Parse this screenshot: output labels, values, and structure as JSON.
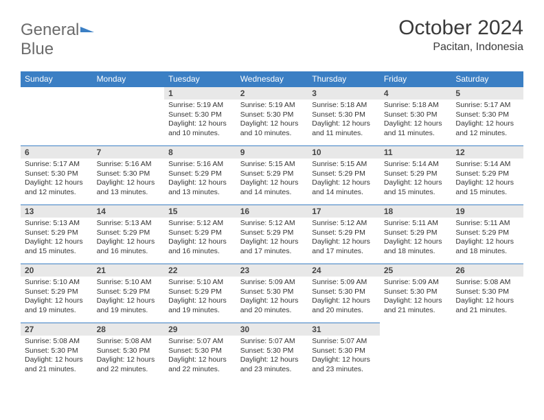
{
  "logo": {
    "part1": "General",
    "part2": "Blue"
  },
  "title": "October 2024",
  "location": "Pacitan, Indonesia",
  "colors": {
    "header_bg": "#3b7fc4",
    "header_text": "#ffffff",
    "daynum_bg": "#e8e8e8",
    "border": "#3b7fc4",
    "logo_gray": "#6b6b6b",
    "logo_blue": "#3b7fc4",
    "background": "#ffffff"
  },
  "typography": {
    "month_title_size": 30,
    "location_size": 16,
    "weekday_size": 12,
    "daynum_size": 12,
    "body_size": 10.5
  },
  "weekdays": [
    "Sunday",
    "Monday",
    "Tuesday",
    "Wednesday",
    "Thursday",
    "Friday",
    "Saturday"
  ],
  "weeks": [
    [
      null,
      null,
      {
        "n": "1",
        "sr": "Sunrise: 5:19 AM",
        "ss": "Sunset: 5:30 PM",
        "d1": "Daylight: 12 hours",
        "d2": "and 10 minutes."
      },
      {
        "n": "2",
        "sr": "Sunrise: 5:19 AM",
        "ss": "Sunset: 5:30 PM",
        "d1": "Daylight: 12 hours",
        "d2": "and 10 minutes."
      },
      {
        "n": "3",
        "sr": "Sunrise: 5:18 AM",
        "ss": "Sunset: 5:30 PM",
        "d1": "Daylight: 12 hours",
        "d2": "and 11 minutes."
      },
      {
        "n": "4",
        "sr": "Sunrise: 5:18 AM",
        "ss": "Sunset: 5:30 PM",
        "d1": "Daylight: 12 hours",
        "d2": "and 11 minutes."
      },
      {
        "n": "5",
        "sr": "Sunrise: 5:17 AM",
        "ss": "Sunset: 5:30 PM",
        "d1": "Daylight: 12 hours",
        "d2": "and 12 minutes."
      }
    ],
    [
      {
        "n": "6",
        "sr": "Sunrise: 5:17 AM",
        "ss": "Sunset: 5:30 PM",
        "d1": "Daylight: 12 hours",
        "d2": "and 12 minutes."
      },
      {
        "n": "7",
        "sr": "Sunrise: 5:16 AM",
        "ss": "Sunset: 5:30 PM",
        "d1": "Daylight: 12 hours",
        "d2": "and 13 minutes."
      },
      {
        "n": "8",
        "sr": "Sunrise: 5:16 AM",
        "ss": "Sunset: 5:29 PM",
        "d1": "Daylight: 12 hours",
        "d2": "and 13 minutes."
      },
      {
        "n": "9",
        "sr": "Sunrise: 5:15 AM",
        "ss": "Sunset: 5:29 PM",
        "d1": "Daylight: 12 hours",
        "d2": "and 14 minutes."
      },
      {
        "n": "10",
        "sr": "Sunrise: 5:15 AM",
        "ss": "Sunset: 5:29 PM",
        "d1": "Daylight: 12 hours",
        "d2": "and 14 minutes."
      },
      {
        "n": "11",
        "sr": "Sunrise: 5:14 AM",
        "ss": "Sunset: 5:29 PM",
        "d1": "Daylight: 12 hours",
        "d2": "and 15 minutes."
      },
      {
        "n": "12",
        "sr": "Sunrise: 5:14 AM",
        "ss": "Sunset: 5:29 PM",
        "d1": "Daylight: 12 hours",
        "d2": "and 15 minutes."
      }
    ],
    [
      {
        "n": "13",
        "sr": "Sunrise: 5:13 AM",
        "ss": "Sunset: 5:29 PM",
        "d1": "Daylight: 12 hours",
        "d2": "and 15 minutes."
      },
      {
        "n": "14",
        "sr": "Sunrise: 5:13 AM",
        "ss": "Sunset: 5:29 PM",
        "d1": "Daylight: 12 hours",
        "d2": "and 16 minutes."
      },
      {
        "n": "15",
        "sr": "Sunrise: 5:12 AM",
        "ss": "Sunset: 5:29 PM",
        "d1": "Daylight: 12 hours",
        "d2": "and 16 minutes."
      },
      {
        "n": "16",
        "sr": "Sunrise: 5:12 AM",
        "ss": "Sunset: 5:29 PM",
        "d1": "Daylight: 12 hours",
        "d2": "and 17 minutes."
      },
      {
        "n": "17",
        "sr": "Sunrise: 5:12 AM",
        "ss": "Sunset: 5:29 PM",
        "d1": "Daylight: 12 hours",
        "d2": "and 17 minutes."
      },
      {
        "n": "18",
        "sr": "Sunrise: 5:11 AM",
        "ss": "Sunset: 5:29 PM",
        "d1": "Daylight: 12 hours",
        "d2": "and 18 minutes."
      },
      {
        "n": "19",
        "sr": "Sunrise: 5:11 AM",
        "ss": "Sunset: 5:29 PM",
        "d1": "Daylight: 12 hours",
        "d2": "and 18 minutes."
      }
    ],
    [
      {
        "n": "20",
        "sr": "Sunrise: 5:10 AM",
        "ss": "Sunset: 5:29 PM",
        "d1": "Daylight: 12 hours",
        "d2": "and 19 minutes."
      },
      {
        "n": "21",
        "sr": "Sunrise: 5:10 AM",
        "ss": "Sunset: 5:29 PM",
        "d1": "Daylight: 12 hours",
        "d2": "and 19 minutes."
      },
      {
        "n": "22",
        "sr": "Sunrise: 5:10 AM",
        "ss": "Sunset: 5:29 PM",
        "d1": "Daylight: 12 hours",
        "d2": "and 19 minutes."
      },
      {
        "n": "23",
        "sr": "Sunrise: 5:09 AM",
        "ss": "Sunset: 5:30 PM",
        "d1": "Daylight: 12 hours",
        "d2": "and 20 minutes."
      },
      {
        "n": "24",
        "sr": "Sunrise: 5:09 AM",
        "ss": "Sunset: 5:30 PM",
        "d1": "Daylight: 12 hours",
        "d2": "and 20 minutes."
      },
      {
        "n": "25",
        "sr": "Sunrise: 5:09 AM",
        "ss": "Sunset: 5:30 PM",
        "d1": "Daylight: 12 hours",
        "d2": "and 21 minutes."
      },
      {
        "n": "26",
        "sr": "Sunrise: 5:08 AM",
        "ss": "Sunset: 5:30 PM",
        "d1": "Daylight: 12 hours",
        "d2": "and 21 minutes."
      }
    ],
    [
      {
        "n": "27",
        "sr": "Sunrise: 5:08 AM",
        "ss": "Sunset: 5:30 PM",
        "d1": "Daylight: 12 hours",
        "d2": "and 21 minutes."
      },
      {
        "n": "28",
        "sr": "Sunrise: 5:08 AM",
        "ss": "Sunset: 5:30 PM",
        "d1": "Daylight: 12 hours",
        "d2": "and 22 minutes."
      },
      {
        "n": "29",
        "sr": "Sunrise: 5:07 AM",
        "ss": "Sunset: 5:30 PM",
        "d1": "Daylight: 12 hours",
        "d2": "and 22 minutes."
      },
      {
        "n": "30",
        "sr": "Sunrise: 5:07 AM",
        "ss": "Sunset: 5:30 PM",
        "d1": "Daylight: 12 hours",
        "d2": "and 23 minutes."
      },
      {
        "n": "31",
        "sr": "Sunrise: 5:07 AM",
        "ss": "Sunset: 5:30 PM",
        "d1": "Daylight: 12 hours",
        "d2": "and 23 minutes."
      },
      null,
      null
    ]
  ]
}
